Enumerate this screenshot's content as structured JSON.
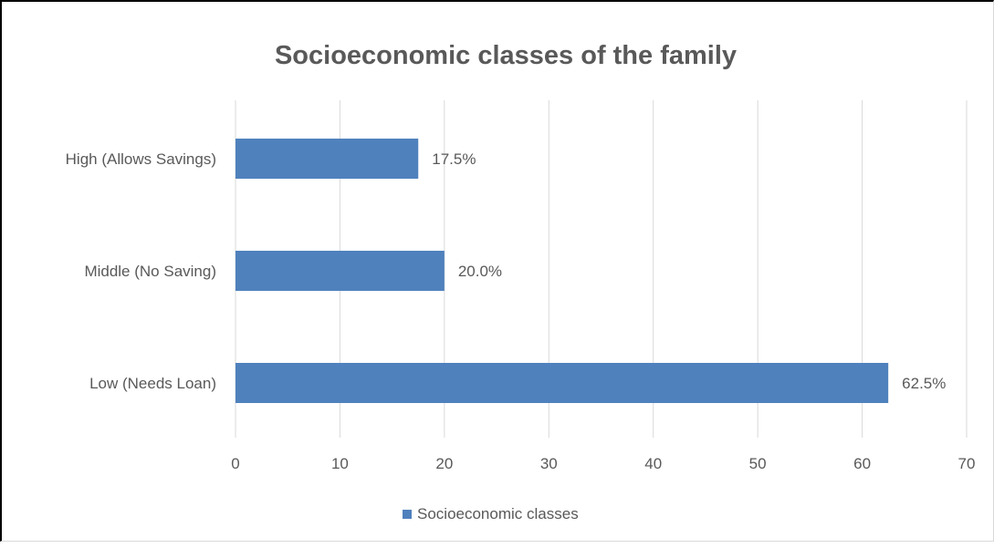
{
  "chart_data": {
    "type": "bar",
    "orientation": "horizontal",
    "title": "Socioeconomic classes of the family",
    "xlabel": "",
    "ylabel": "",
    "categories": [
      "High (Allows Savings)",
      "Middle (No Saving)",
      "Low (Needs Loan)"
    ],
    "series": [
      {
        "name": "Socioeconomic classes",
        "values": [
          17.5,
          20.0,
          62.5
        ],
        "data_labels": [
          "17.5%",
          "20.0%",
          "62.5%"
        ],
        "color": "#4f81bd"
      }
    ],
    "xlim": [
      0,
      70
    ],
    "xticks": [
      "0",
      "10",
      "20",
      "30",
      "40",
      "50",
      "60",
      "70"
    ],
    "grid": true,
    "legend": "bottom"
  }
}
